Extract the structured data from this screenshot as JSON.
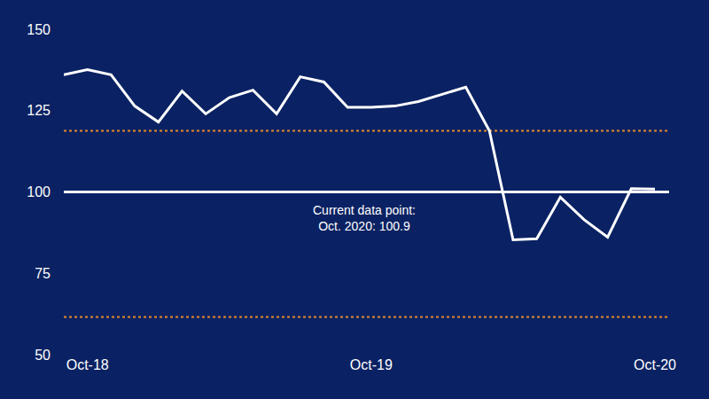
{
  "chart_data": {
    "type": "line",
    "categories": [
      null,
      "Oct-18",
      null,
      null,
      null,
      null,
      null,
      null,
      null,
      null,
      null,
      null,
      null,
      "Oct-19",
      null,
      null,
      null,
      null,
      null,
      null,
      null,
      null,
      null,
      null,
      null,
      "Oct-20"
    ],
    "series": [
      {
        "color": "#ffffff",
        "line_style": "solid",
        "values": [
          136,
          137.6,
          136,
          126.4,
          121.5,
          131,
          124,
          129,
          131.3,
          124,
          135.4,
          133.8,
          126,
          126,
          126.4,
          127.8,
          130,
          132.2,
          118.8,
          85.3,
          85.6,
          98.4,
          91.5,
          86.1,
          101,
          100.9
        ]
      }
    ],
    "ylim": [
      50,
      150
    ],
    "yticks": [
      50,
      75,
      100,
      125,
      150
    ],
    "grid": false,
    "annotations": [
      "Current data point:",
      "Oct. 2020: 100.9"
    ],
    "reference_lines": [
      {
        "value": 100,
        "color": "#ffffff",
        "line_style": "solid"
      },
      {
        "value": 118.8,
        "color": "#e8882a",
        "line_style": "dotted"
      },
      {
        "value": 61.6,
        "color": "#e8882a",
        "line_style": "dotted"
      }
    ]
  }
}
